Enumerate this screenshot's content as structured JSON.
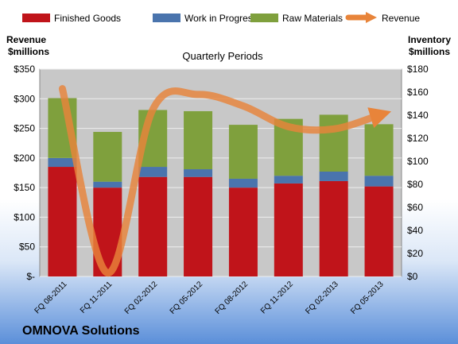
{
  "company": "OMNOVA Solutions",
  "left_axis_title_line1": "Revenue",
  "left_axis_title_line2": "$millions",
  "right_axis_title_line1": "Inventory",
  "right_axis_title_line2": "$millions",
  "colors": {
    "finished_goods": "#c0141a",
    "work_in_progress": "#4a74ad",
    "raw_materials": "#7fa03d",
    "revenue": "#e8843a",
    "plot_bg": "#c8c8c8"
  },
  "chart_data": {
    "type": "bar",
    "stacked": true,
    "title": "Quarterly Periods",
    "categories": [
      "FQ 08-2011",
      "FQ 11-2011",
      "FQ 02-2012",
      "FQ 05-2012",
      "FQ 08-2012",
      "FQ 11-2012",
      "FQ 02-2013",
      "FQ 05-2013"
    ],
    "series": [
      {
        "name": "Finished Goods",
        "axis": "left",
        "values": [
          185,
          150,
          168,
          168,
          150,
          157,
          161,
          152
        ]
      },
      {
        "name": "Work in Progress",
        "axis": "left",
        "values": [
          15,
          10,
          17,
          13,
          15,
          13,
          16,
          18
        ]
      },
      {
        "name": "Raw Materials",
        "axis": "left",
        "values": [
          101,
          84,
          96,
          98,
          91,
          96,
          96,
          87
        ]
      },
      {
        "name": "Revenue",
        "axis": "right",
        "type": "line",
        "values": [
          163,
          3,
          145,
          158,
          148,
          130,
          128,
          140
        ]
      }
    ],
    "left_axis": {
      "min": 0,
      "max": 350,
      "ticks": [
        "$-",
        "$50",
        "$100",
        "$150",
        "$200",
        "$250",
        "$300",
        "$350"
      ]
    },
    "right_axis": {
      "min": 0,
      "max": 180,
      "ticks": [
        "$0",
        "$20",
        "$40",
        "$60",
        "$80",
        "$100",
        "$120",
        "$140",
        "$160",
        "$180"
      ]
    },
    "legend_position": "top",
    "grid": true
  }
}
